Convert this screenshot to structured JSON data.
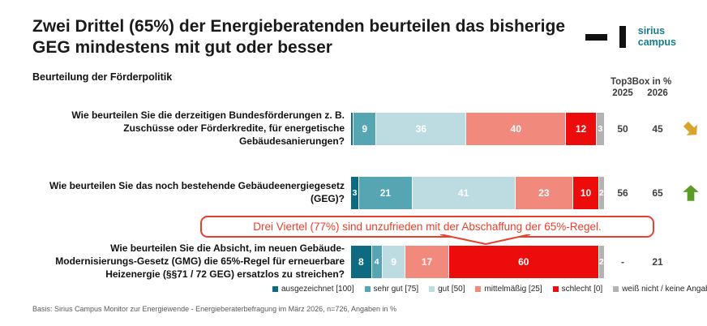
{
  "header": {
    "title": "Zwei Drittel (65%) der Energieberatenden beurteilen das bisherige GEG mindestens mit gut oder besser",
    "subtitle": "Beurteilung der Förderpolitik",
    "logo": {
      "line1": "sirius",
      "line2": "campus",
      "color": "#157c8d"
    }
  },
  "top3box_header": {
    "title": "Top3Box in %",
    "col_2025": "2025",
    "col_2026": "2026"
  },
  "chart_data": {
    "type": "bar",
    "stacked": true,
    "orientation": "horizontal",
    "value_range": [
      0,
      100
    ],
    "unit": "%",
    "answer_scale": [
      "ausgezeichnet [100]",
      "sehr gut [75]",
      "gut [50]",
      "mittelmäßig [25]",
      "schlecht [0]",
      "weiß nicht / keine Angabe"
    ],
    "colors": [
      "#0e6a80",
      "#55a6b2",
      "#bddce1",
      "#f18a7c",
      "#ed0c0c",
      "#b3b3b3"
    ],
    "rows": [
      {
        "question": "Wie beurteilen Sie die derzeitigen Bundesförderungen z. B. Zuschüsse oder Förderkredite, für energetische Gebäudesanierungen?",
        "values": [
          0,
          9,
          36,
          40,
          12,
          3
        ],
        "top3box_2025": "50",
        "top3box_2026": "45",
        "trend": "down"
      },
      {
        "question": "Wie beurteilen Sie das noch bestehende Gebäudeenergiegesetz (GEG)?",
        "values": [
          3,
          21,
          41,
          23,
          10,
          2
        ],
        "top3box_2025": "56",
        "top3box_2026": "65",
        "trend": "up"
      },
      {
        "question": "Wie beurteilen Sie die Absicht, im neuen Gebäude-Modernisierungs-Gesetz (GMG) die 65%-Regel für erneuerbare Heizenergie (§§71 / 72 GEG) ersatzlos zu streichen?",
        "values": [
          8,
          4,
          9,
          17,
          60,
          2
        ],
        "top3box_2025": "-",
        "top3box_2026": "21",
        "trend": "none"
      }
    ],
    "annotation": "Drei Viertel (77%) sind unzufrieden mit der Abschaffung der 65%-Regel.",
    "legend_position": "bottom"
  },
  "legend": {
    "items": [
      {
        "label": "ausgezeichnet [100]",
        "color": "#0e6a80"
      },
      {
        "label": "sehr gut [75]",
        "color": "#55a6b2"
      },
      {
        "label": "gut [50]",
        "color": "#bddce1"
      },
      {
        "label": "mittelmäßig [25]",
        "color": "#f18a7c"
      },
      {
        "label": "schlecht [0]",
        "color": "#ed0c0c"
      },
      {
        "label": "weiß nicht / keine Angabe",
        "color": "#b3b3b3"
      }
    ]
  },
  "footer": {
    "text": "Basis: Sirius Campus Monitor zur Energiewende - Energieberaterbefragung im März 2026, n=726, Angaben in %"
  },
  "accent_colors": {
    "trend_down": "#d9a42b",
    "trend_up": "#5b9b26",
    "annotation": "#e8402c"
  }
}
